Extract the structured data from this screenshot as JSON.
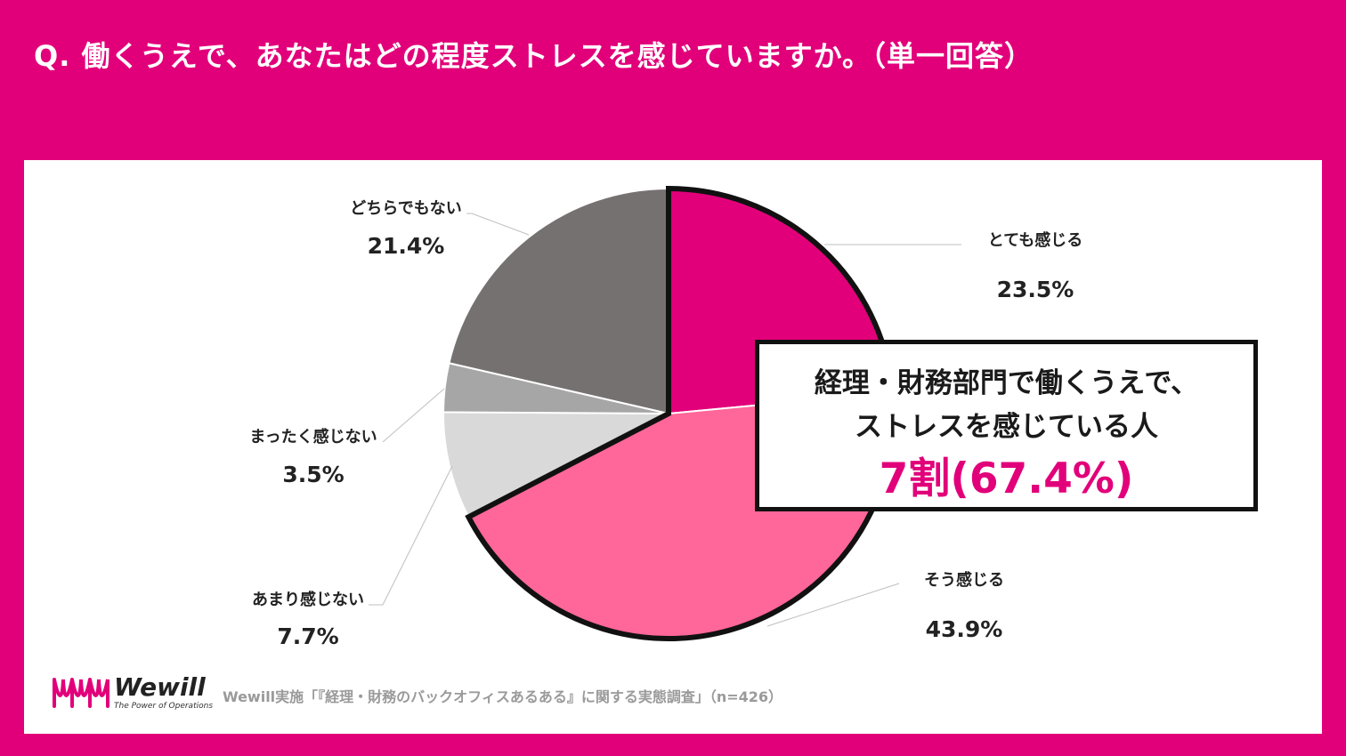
{
  "header": {
    "question": "Q. 働くうえで、あなたはどの程度ストレスを感じていますか。（単一回答）"
  },
  "chart_data": {
    "type": "pie",
    "title": "Q. 働くうえで、あなたはどの程度ストレスを感じていますか。（単一回答）",
    "categories": [
      "とても感じる",
      "そう感じる",
      "あまり感じない",
      "まったく感じない",
      "どちらでもない"
    ],
    "values": [
      23.5,
      43.9,
      7.7,
      3.5,
      21.4
    ],
    "value_labels": [
      "23.5%",
      "43.9%",
      "7.7%",
      "3.5%",
      "21.4%"
    ],
    "colors": [
      "#e2007a",
      "#ff6699",
      "#d9d9d9",
      "#a6a6a6",
      "#767171"
    ],
    "start_angle_deg": 0,
    "direction": "clockwise",
    "highlighted_slices": [
      0,
      1
    ],
    "n": 426
  },
  "callout": {
    "line1": "経理・財務部門で働くうえで、",
    "line2": "ストレスを感じている人",
    "highlight": "7割(67.4%)"
  },
  "footer": {
    "brand": "Wewill",
    "tagline": "The Power of Operations",
    "source": "Wewill実施「『経理・財務のバックオフィスあるある』に関する実態調査」（n=426）"
  },
  "colors": {
    "background": "#e2007a",
    "panel": "#ffffff",
    "accent": "#e2007a"
  }
}
